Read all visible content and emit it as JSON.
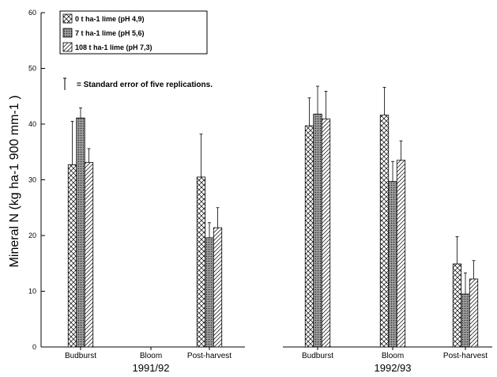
{
  "chart_data": {
    "type": "bar",
    "ylabel": "Mineral N (kg ha-1 900 mm-1 )",
    "ylim": [
      0,
      60
    ],
    "yticks": [
      0,
      10,
      20,
      30,
      40,
      50,
      60
    ],
    "grid": false,
    "legend_position": "top-left",
    "se_note": "= Standard error of five replications.",
    "series": [
      {
        "name": "0 t ha-1 lime (pH 4,9)",
        "pattern": "crosshatch"
      },
      {
        "name": "7 t ha-1 lime (pH 5,6)",
        "pattern": "stipple"
      },
      {
        "name": "108 t ha-1 lime (pH 7,3)",
        "pattern": "diagonal"
      }
    ],
    "panels": [
      {
        "group_label": "1991/92",
        "categories": [
          "Budburst",
          "Bloom",
          "Post-harvest"
        ],
        "values": [
          [
            32.7,
            41.1,
            33.1
          ],
          [
            null,
            null,
            null
          ],
          [
            30.5,
            19.6,
            21.4
          ]
        ],
        "errors": [
          [
            7.8,
            1.8,
            2.5
          ],
          [
            null,
            null,
            null
          ],
          [
            7.7,
            2.7,
            3.6
          ]
        ]
      },
      {
        "group_label": "1992/93",
        "categories": [
          "Budburst",
          "Bloom",
          "Post-harvest"
        ],
        "values": [
          [
            39.7,
            41.8,
            40.9
          ],
          [
            41.6,
            29.7,
            33.5
          ],
          [
            14.9,
            9.5,
            12.2
          ]
        ],
        "errors": [
          [
            5.0,
            5.0,
            5.0
          ],
          [
            5.0,
            3.6,
            3.5
          ],
          [
            4.9,
            3.8,
            3.3
          ]
        ]
      }
    ]
  }
}
